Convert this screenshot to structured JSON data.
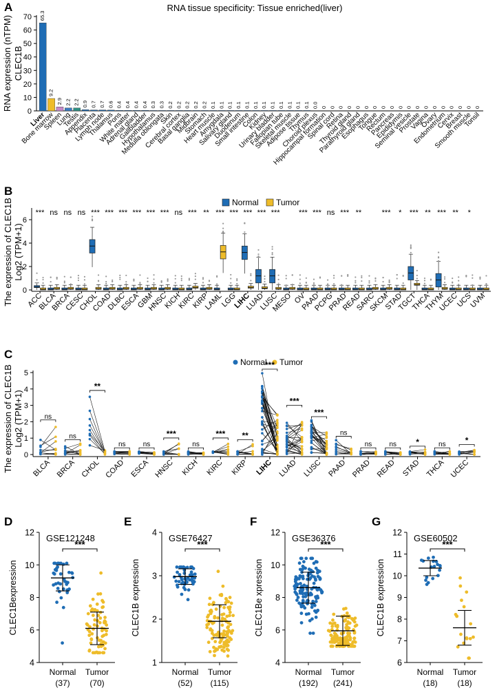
{
  "colors": {
    "normal": "#1f6db5",
    "tumor": "#eebc2a",
    "highlight": "#d62020",
    "spleen": "#c589c9",
    "lung": "#3a7bbf",
    "testis": "#2f8f82"
  },
  "panelA": {
    "letter": "A",
    "title": "RNA tissue specificity: Tissue enriched(liver)",
    "ylabel1": "RNA expression (nTPM)",
    "ylabel2": "CLEC1B",
    "yticks": [
      "0",
      "10",
      "20",
      "30",
      "40",
      "50",
      "60",
      "70"
    ],
    "highlight_tissue": "Liver"
  },
  "panelB": {
    "letter": "B",
    "ylabel1": "The expression of CLEC1B",
    "ylabel2": "Log2 (TPM+1)",
    "yticks": [
      "0",
      "2",
      "4",
      "6"
    ],
    "legend_normal": "Normal",
    "legend_tumor": "Tumor",
    "highlight": "LIHC"
  },
  "panelC": {
    "letter": "C",
    "ylabel1": "The expression of CLEC1B",
    "ylabel2": "Log2 (TPM+1)",
    "yticks": [
      "0",
      "1",
      "2",
      "3",
      "4",
      "5"
    ],
    "legend_normal": "Normal",
    "legend_tumor": "Tumor",
    "highlight": "LIHC"
  },
  "chart_data": [
    {
      "type": "bar",
      "title": "RNA tissue specificity: Tissue enriched(liver)",
      "ylabel": "RNA expression (nTPM)",
      "ylim": [
        0,
        70
      ],
      "categories": [
        "Liver",
        "Bone marrow",
        "Spleen",
        "Lung",
        "Testis",
        "Appendix",
        "Placenta",
        "Lymph node",
        "Thalamus",
        "Pons",
        "White matter",
        "Adrenal gland",
        "Gallbladder",
        "Hypothalamus",
        "Medulla oblongata",
        "Skin",
        "Cerebral cortex",
        "Basal ganglia",
        "Midbrain",
        "Stomach",
        "Heart muscle",
        "Amygdala",
        "Salivary gland",
        "Duodenum",
        "Small intestine",
        "Colon",
        "Kidney",
        "Urinary bladder",
        "Fallopian tube",
        "Skeletal muscle",
        "Adipose tissue",
        "Thymus",
        "Choroid plexus",
        "Hippocampal formation",
        "Spinal cord",
        "Retina",
        "Thyroid gland",
        "Parathyroid gland",
        "Esophagus",
        "Tongue",
        "Rectum",
        "Pancreas",
        "Epididymis",
        "Seminal vesicle",
        "Prostate",
        "Vagina",
        "Ovary",
        "Endometrium",
        "Cervix",
        "Breast",
        "Smooth muscle",
        "Tonsil"
      ],
      "values": [
        65.3,
        9.2,
        2.9,
        2.2,
        2.2,
        0.9,
        0.7,
        0.7,
        0.6,
        0.4,
        0.4,
        0.4,
        0.4,
        0.3,
        0.3,
        0.2,
        0.2,
        0.2,
        0.2,
        0.2,
        0.1,
        0.1,
        0.1,
        0.1,
        0.1,
        0.1,
        0.1,
        0.1,
        0.1,
        0.1,
        0.1,
        0.1,
        0.0,
        0,
        0,
        0,
        0,
        0,
        0,
        0,
        0,
        0,
        0,
        0,
        0,
        0,
        0,
        0,
        0,
        0,
        0,
        0
      ],
      "labels": [
        "65.3",
        "9.2",
        "2.9",
        "2.2",
        "2.2",
        "0.9",
        "0.7",
        "0.7",
        "0.6",
        "0.4",
        "0.4",
        "0.4",
        "0.4",
        "0.3",
        "0.3",
        "0.2",
        "0.2",
        "0.2",
        "0.2",
        "0.2",
        "0.1",
        "0.1",
        "0.1",
        "0.1",
        "0.1",
        "0.1",
        "0.1",
        "0.1",
        "0.1",
        "0.1",
        "0.1",
        "0.1",
        "0.0",
        "0",
        "0",
        "0",
        "0",
        "0",
        "0",
        "0",
        "0",
        "0",
        "0",
        "0",
        "0",
        "0",
        "0",
        "0",
        "0",
        "0",
        "0",
        "0"
      ]
    },
    {
      "type": "box",
      "ylabel": "The expression of CLEC1B Log2 (TPM+1)",
      "ylim": [
        0,
        7
      ],
      "categories": [
        "ACC",
        "BLCA",
        "BRCA",
        "CESC",
        "CHOL",
        "COAD",
        "DLBC",
        "ESCA",
        "GBM",
        "HNSC",
        "KICH",
        "KIRC",
        "KIRP",
        "LAML",
        "LGG",
        "LIHC",
        "LUAD",
        "LUSC",
        "MESO",
        "OV",
        "PAAD",
        "PCPG",
        "PRAD",
        "READ",
        "SARC",
        "SKCM",
        "STAD",
        "TGCT",
        "THCA",
        "THYM",
        "UCEC",
        "UCS",
        "UVM"
      ],
      "significance": [
        "***",
        "ns",
        "ns",
        "ns",
        "***",
        "***",
        "***",
        "***",
        "***",
        "***",
        "ns",
        "***",
        "**",
        "***",
        "***",
        "***",
        "***",
        "***",
        "",
        "***",
        "***",
        "ns",
        "***",
        "**",
        "",
        "***",
        "*",
        "***",
        "**",
        "***",
        "**",
        "*",
        ""
      ],
      "series": [
        {
          "name": "Normal",
          "medians": [
            0.25,
            0.05,
            0.05,
            0.05,
            3.75,
            0.05,
            0.05,
            0.05,
            0.05,
            0.05,
            0.05,
            0.05,
            0.05,
            0.05,
            0.05,
            3.2,
            1.2,
            1.2,
            0.05,
            0.05,
            0.05,
            0.05,
            0.05,
            0.05,
            0.05,
            0.05,
            0.05,
            1.45,
            0.05,
            0.85,
            0.05,
            0.05,
            0.05
          ]
        },
        {
          "name": "Tumor",
          "medians": [
            0.05,
            0.1,
            0.1,
            0.05,
            0.1,
            0.1,
            0.1,
            0.1,
            0.1,
            0.1,
            0.05,
            0.2,
            0.1,
            3.25,
            0.05,
            0.2,
            0.15,
            0.1,
            0.1,
            0.05,
            0.05,
            0.05,
            0.05,
            0.05,
            0.1,
            0.1,
            0.05,
            0.45,
            0.05,
            0.1,
            0.05,
            0.05,
            0.05
          ]
        }
      ]
    },
    {
      "type": "paired",
      "ylabel": "The expression of CLEC1B Log2 (TPM+1)",
      "ylim": [
        0,
        5
      ],
      "categories": [
        "BLCA",
        "BRCA",
        "CHOL",
        "COAD",
        "ESCA",
        "HNSC",
        "KICH",
        "KIRC",
        "KIRP",
        "LIHC",
        "LUAD",
        "LUSC",
        "PAAD",
        "PRAD",
        "READ",
        "STAD",
        "THCA",
        "UCEC"
      ],
      "significance": [
        "ns",
        "ns",
        "**",
        "ns",
        "ns",
        "***",
        "ns",
        "***",
        "**",
        "***",
        "***",
        "***",
        "ns",
        "ns",
        "ns",
        "*",
        "ns",
        "*"
      ],
      "normal_max": [
        0.9,
        0.5,
        3.7,
        0.2,
        0.2,
        0.2,
        0.2,
        0.2,
        0.2,
        5.0,
        2.1,
        2.1,
        0.9,
        0.2,
        0.2,
        0.2,
        0.2,
        0.2
      ],
      "tumor_max": [
        1.9,
        0.7,
        0.3,
        0.2,
        0.2,
        0.8,
        0.2,
        0.8,
        0.7,
        2.6,
        2.8,
        1.4,
        0.4,
        0.2,
        0.2,
        0.3,
        0.2,
        0.4
      ]
    },
    {
      "type": "scatter",
      "panel": "D",
      "title": "GSE121248",
      "ylabel": "CLEC1Bexpression",
      "yticks": [
        "4",
        "6",
        "8",
        "10",
        "12"
      ],
      "ylim": [
        4,
        12
      ],
      "categories": [
        "Normal",
        "Tumor"
      ],
      "counts": [
        "(37)",
        "(70)"
      ],
      "significance": "***",
      "series": [
        {
          "name": "Normal",
          "n": 37,
          "mean": 9.2,
          "sd": 0.8,
          "min": 5.2,
          "max": 10.1
        },
        {
          "name": "Tumor",
          "n": 70,
          "mean": 6.1,
          "sd": 1.0,
          "min": 4.6,
          "max": 9.5
        }
      ]
    },
    {
      "type": "scatter",
      "panel": "E",
      "title": "GSE76427",
      "ylabel": "CLEC1B expression",
      "yticks": [
        "1",
        "2",
        "3",
        "4"
      ],
      "ylim": [
        1,
        4
      ],
      "categories": [
        "Normal",
        "Tumor"
      ],
      "counts": [
        "(52)",
        "(115)"
      ],
      "significance": "***",
      "series": [
        {
          "name": "Normal",
          "n": 52,
          "mean": 2.98,
          "sd": 0.18,
          "min": 2.45,
          "max": 3.2
        },
        {
          "name": "Tumor",
          "n": 115,
          "mean": 1.95,
          "sd": 0.38,
          "min": 1.15,
          "max": 3.1
        }
      ]
    },
    {
      "type": "scatter",
      "panel": "F",
      "title": "GSE36376",
      "ylabel": "CLEC1Be xpression",
      "yticks": [
        "4",
        "6",
        "8",
        "10",
        "12"
      ],
      "ylim": [
        4,
        12
      ],
      "categories": [
        "Normal",
        "Tumor"
      ],
      "counts": [
        "(192)",
        "(241)"
      ],
      "significance": "***",
      "series": [
        {
          "name": "Normal",
          "n": 192,
          "mean": 8.6,
          "sd": 0.95,
          "min": 5.8,
          "max": 10.4
        },
        {
          "name": "Tumor",
          "n": 241,
          "mean": 5.95,
          "sd": 0.9,
          "min": 5.0,
          "max": 10.2
        }
      ]
    },
    {
      "type": "scatter",
      "panel": "G",
      "title": "GSE60502",
      "ylabel": "CLEC1B expression",
      "yticks": [
        "6",
        "7",
        "8",
        "9",
        "10",
        "11",
        "12"
      ],
      "ylim": [
        6,
        12
      ],
      "categories": [
        "Normal",
        "Tumor"
      ],
      "counts": [
        "(18)",
        "(18)"
      ],
      "significance": "***",
      "series": [
        {
          "name": "Normal",
          "n": 18,
          "mean": 10.35,
          "sd": 0.35,
          "min": 9.6,
          "max": 10.85
        },
        {
          "name": "Tumor",
          "n": 18,
          "mean": 7.6,
          "sd": 0.8,
          "min": 6.2,
          "max": 9.9
        }
      ]
    }
  ]
}
